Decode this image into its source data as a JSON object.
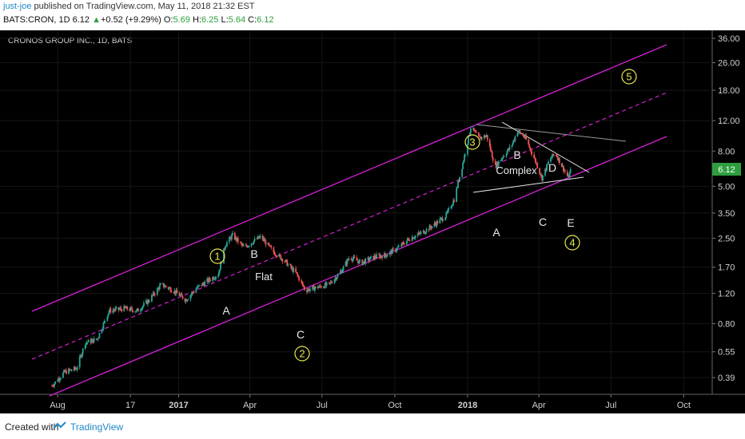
{
  "header": {
    "user": "just-joe",
    "published": "published on TradingView.com, May 11, 2018 21:32 EST",
    "symbol": "BATS:CRON, 1D",
    "last": "6.12",
    "change_arrow": "▲",
    "change": "+0.52 (+9.29%)",
    "o_label": "O:",
    "o": "5.69",
    "h_label": "H:",
    "h": "6.25",
    "l_label": "L:",
    "l": "5.64",
    "c_label": "C:",
    "c": "6.12"
  },
  "footer": {
    "created": "Created with",
    "brand": "TradingView"
  },
  "chart_data": {
    "type": "candlestick",
    "title": "CRONOS GROUP INC., 1D, BATS",
    "y_scale": "log",
    "ylim": [
      0.34,
      36.0
    ],
    "y_ticks": [
      "36.00",
      "26.00",
      "18.00",
      "12.00",
      "8.00",
      "5.00",
      "3.50",
      "2.50",
      "1.70",
      "1.20",
      "0.80",
      "0.55",
      "0.39"
    ],
    "x_ticks": [
      "Aug",
      "17",
      "2017",
      "Apr",
      "Jul",
      "Oct",
      "2018",
      "Apr",
      "Jul",
      "Oct"
    ],
    "last_price_label": "6.12",
    "approx_price_path": [
      [
        "2016-07-25",
        0.35
      ],
      [
        "2016-08-10",
        0.42
      ],
      [
        "2016-08-25",
        0.44
      ],
      [
        "2016-09-05",
        0.62
      ],
      [
        "2016-09-20",
        0.65
      ],
      [
        "2016-10-05",
        0.95
      ],
      [
        "2016-10-25",
        0.98
      ],
      [
        "2016-11-10",
        0.95
      ],
      [
        "2016-11-25",
        1.1
      ],
      [
        "2016-12-10",
        1.35
      ],
      [
        "2016-12-25",
        1.25
      ],
      [
        "2017-01-10",
        1.1
      ],
      [
        "2017-01-25",
        1.3
      ],
      [
        "2017-02-10",
        1.45
      ],
      [
        "2017-02-20",
        1.55
      ],
      [
        "2017-03-01",
        2.3
      ],
      [
        "2017-03-10",
        2.6
      ],
      [
        "2017-03-25",
        2.2
      ],
      [
        "2017-04-05",
        2.4
      ],
      [
        "2017-04-15",
        2.55
      ],
      [
        "2017-04-30",
        2.1
      ],
      [
        "2017-05-15",
        1.85
      ],
      [
        "2017-05-30",
        1.55
      ],
      [
        "2017-06-10",
        1.25
      ],
      [
        "2017-06-25",
        1.3
      ],
      [
        "2017-07-10",
        1.35
      ],
      [
        "2017-07-25",
        1.6
      ],
      [
        "2017-08-05",
        1.95
      ],
      [
        "2017-08-20",
        1.8
      ],
      [
        "2017-09-05",
        1.95
      ],
      [
        "2017-09-20",
        2.0
      ],
      [
        "2017-10-05",
        2.2
      ],
      [
        "2017-10-20",
        2.5
      ],
      [
        "2017-11-05",
        2.7
      ],
      [
        "2017-11-20",
        3.0
      ],
      [
        "2017-12-05",
        3.4
      ],
      [
        "2017-12-15",
        4.2
      ],
      [
        "2017-12-25",
        6.5
      ],
      [
        "2018-01-05",
        11.0
      ],
      [
        "2018-01-15",
        9.5
      ],
      [
        "2018-01-25",
        9.8
      ],
      [
        "2018-02-05",
        6.5
      ],
      [
        "2018-02-15",
        7.5
      ],
      [
        "2018-02-25",
        8.5
      ],
      [
        "2018-03-05",
        10.5
      ],
      [
        "2018-03-15",
        9.5
      ],
      [
        "2018-03-25",
        7.5
      ],
      [
        "2018-04-05",
        5.6
      ],
      [
        "2018-04-15",
        7.2
      ],
      [
        "2018-04-22",
        7.8
      ],
      [
        "2018-04-30",
        6.6
      ],
      [
        "2018-05-08",
        5.6
      ],
      [
        "2018-05-11",
        6.12
      ]
    ],
    "annotations": {
      "wave_circles": [
        "1",
        "2",
        "3",
        "4",
        "5"
      ],
      "wave_letters": [
        "A",
        "B",
        "C",
        "A",
        "B",
        "C",
        "D",
        "E"
      ],
      "words": [
        "Flat",
        "Complex"
      ]
    }
  }
}
